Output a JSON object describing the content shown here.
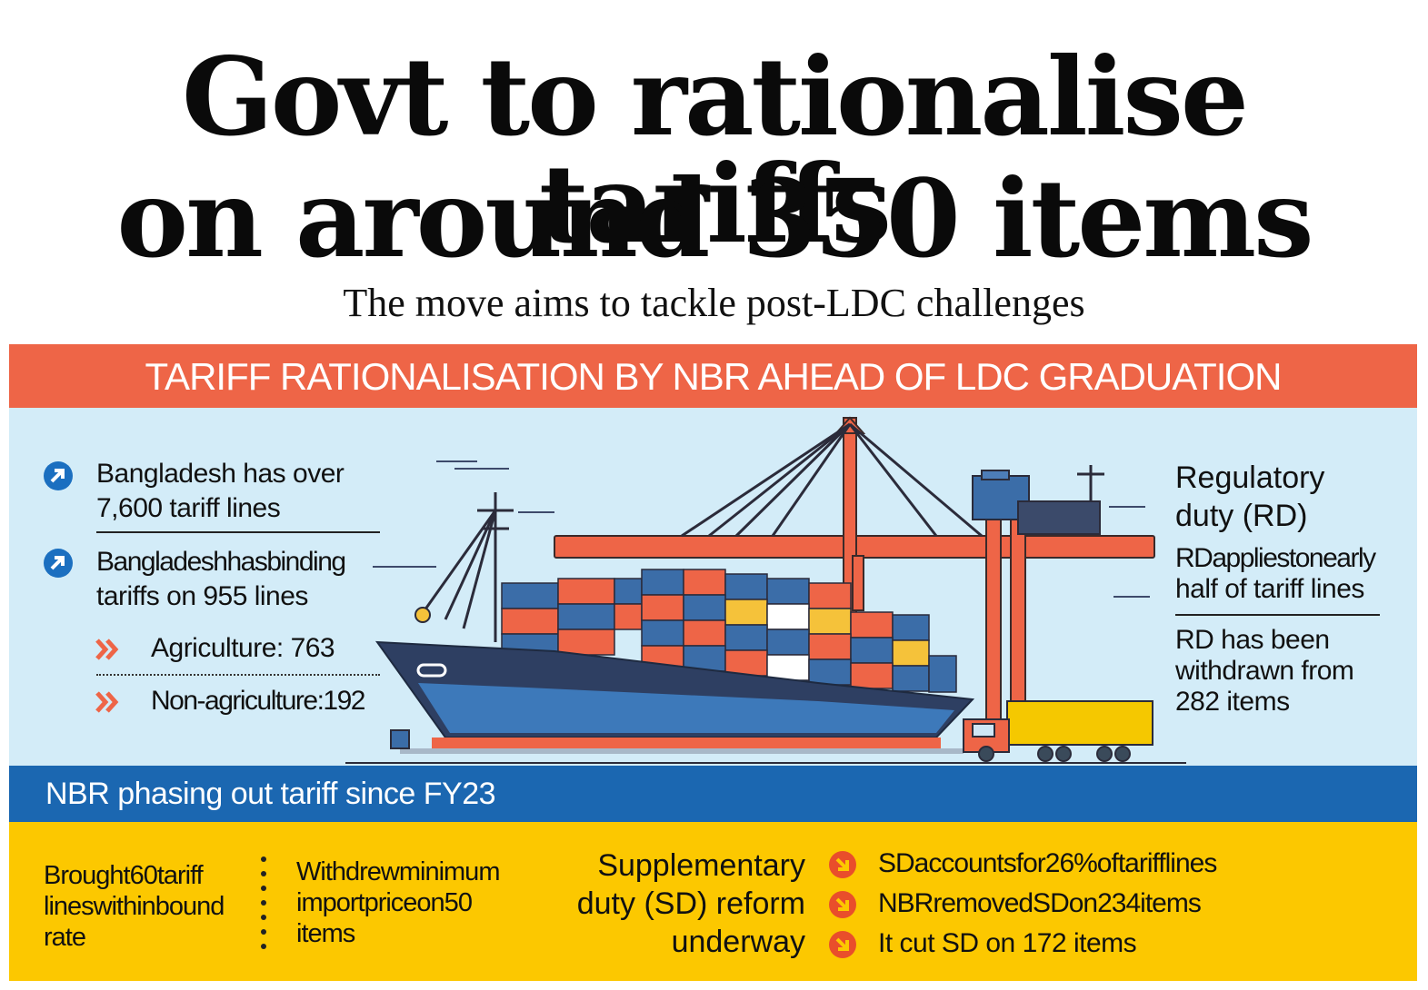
{
  "headline": {
    "line1": "Govt to rationalise tariffs",
    "line2": "on around 350 items"
  },
  "subheadline": "The move aims to tackle post-LDC challenges",
  "banner": "TARIFF RATIONALISATION BY NBR AHEAD OF LDC GRADUATION",
  "left_facts": {
    "fact1": [
      "Bangladesh has over",
      "7,600 tariff lines"
    ],
    "fact2": [
      "Bangladeshhasbinding",
      "tariffs on 955 lines"
    ],
    "sub1": "Agriculture: 763",
    "sub2": "Non-agriculture:192"
  },
  "right_facts": {
    "title": [
      "Regulatory",
      "duty (RD)"
    ],
    "fact1": [
      "RDappliestonearly",
      "half of tariff lines"
    ],
    "fact2": [
      "RD has been",
      "withdrawn from",
      "282 items"
    ]
  },
  "blue_band": "NBR phasing out tariff since FY23",
  "bottom": {
    "col1": [
      "Brought60tariff",
      "lineswithinbound",
      "rate"
    ],
    "col2": [
      "Withdrewminimum",
      "importpriceon50",
      "items"
    ],
    "sd_title": [
      "Supplementary",
      "duty (SD) reform",
      "underway"
    ],
    "sd_items": [
      "SDaccountsfor26%oftarifflines",
      "NBRremovedSDon234items",
      "It cut SD on 172 items"
    ]
  },
  "colors": {
    "banner": "#ee6547",
    "sky": "#d3ecf8",
    "blue_band": "#1b67b1",
    "yellow": "#fcc800",
    "bullet_blue": "#1b6fc0",
    "bullet_orange": "#ee6547",
    "bullet_red": "#e94e2b"
  },
  "icons": {
    "left_bullet": "arrow-up-right-circle-icon",
    "sub_bullet": "double-chevron-right-icon",
    "sd_bullet": "arrow-down-right-circle-icon"
  }
}
